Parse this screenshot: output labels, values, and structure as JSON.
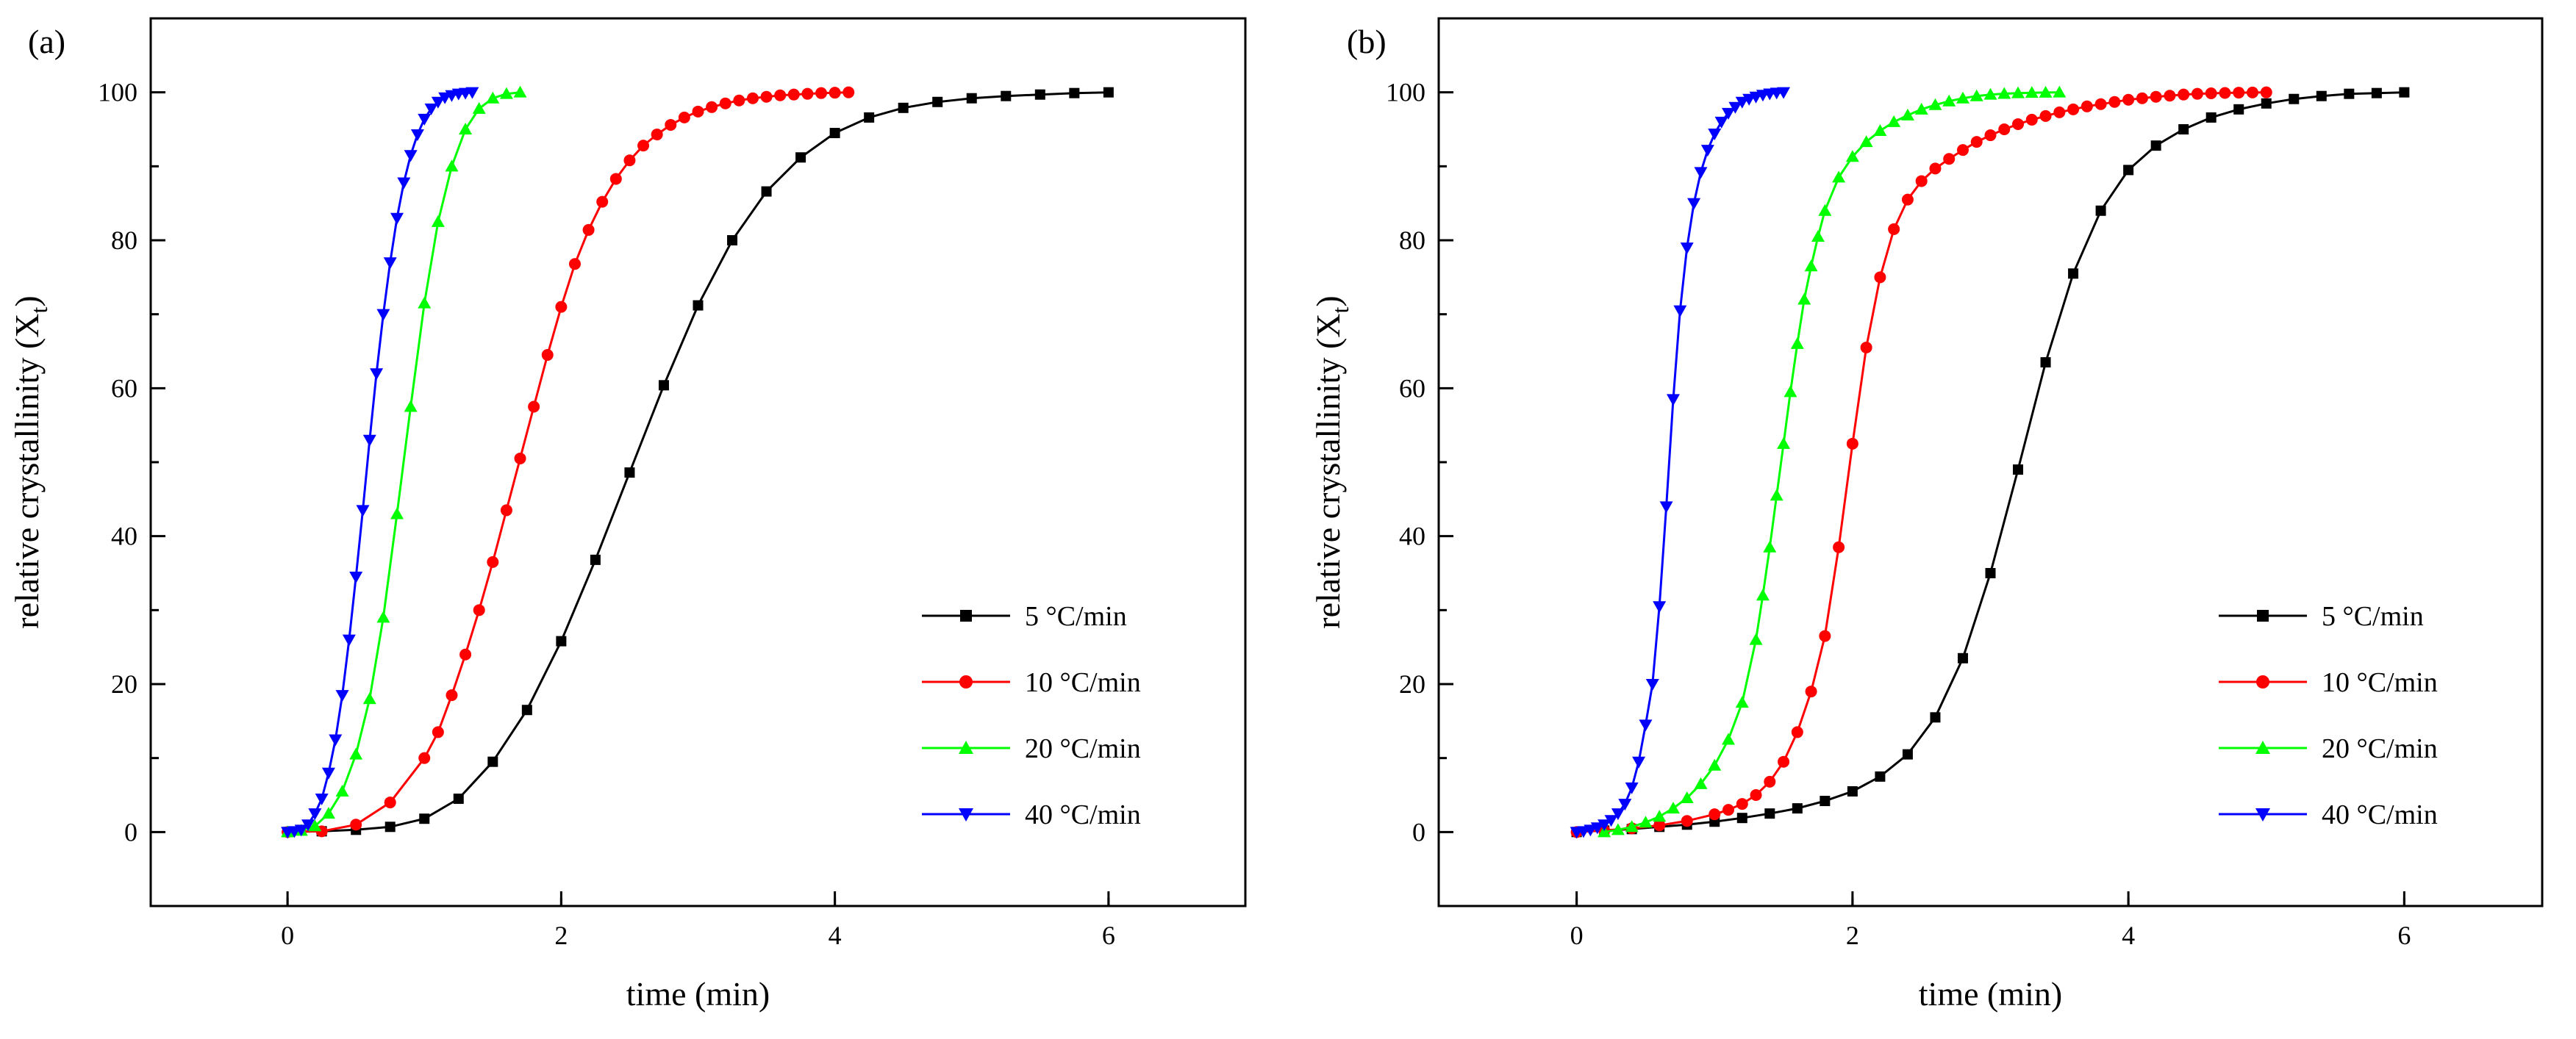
{
  "chart_data": [
    {
      "type": "line",
      "panel_label": "(a)",
      "xlabel": "time (min)",
      "ylabel": "relative crystallinity (X",
      "ylabel_subscript": "t",
      "ylabel_close": ")",
      "xlim": [
        -1,
        7
      ],
      "ylim": [
        -10,
        110
      ],
      "xticks": [
        0,
        2,
        4,
        6
      ],
      "yticks": [
        0,
        20,
        40,
        60,
        80,
        100
      ],
      "xtick_labels": [
        "0",
        "2",
        "4",
        "6"
      ],
      "ytick_labels": [
        "0",
        "20",
        "40",
        "60",
        "80",
        "100"
      ],
      "legend_position": "bottom-right",
      "grid": false,
      "series": [
        {
          "name": "5 °C/min",
          "color": "#000000",
          "marker": "square",
          "x": [
            0.0,
            0.25,
            0.5,
            0.75,
            1.0,
            1.25,
            1.5,
            1.75,
            2.0,
            2.25,
            2.5,
            2.75,
            3.0,
            3.25,
            3.5,
            3.75,
            4.0,
            4.25,
            4.5,
            4.75,
            5.0,
            5.25,
            5.5,
            5.75,
            6.0
          ],
          "y": [
            0,
            0.1,
            0.3,
            0.7,
            1.8,
            4.5,
            9.5,
            16.5,
            25.8,
            36.8,
            48.6,
            60.4,
            71.2,
            80.0,
            86.6,
            91.2,
            94.5,
            96.6,
            97.9,
            98.7,
            99.2,
            99.5,
            99.7,
            99.9,
            100
          ]
        },
        {
          "name": "10 °C/min",
          "color": "#ff0000",
          "marker": "circle",
          "x": [
            0.0,
            0.25,
            0.5,
            0.75,
            1.0,
            1.1,
            1.2,
            1.3,
            1.4,
            1.5,
            1.6,
            1.7,
            1.8,
            1.9,
            2.0,
            2.1,
            2.2,
            2.3,
            2.4,
            2.5,
            2.6,
            2.7,
            2.8,
            2.9,
            3.0,
            3.1,
            3.2,
            3.3,
            3.4,
            3.5,
            3.6,
            3.7,
            3.8,
            3.9,
            4.0,
            4.1
          ],
          "y": [
            0,
            0.1,
            1.0,
            4.0,
            10.0,
            13.5,
            18.5,
            24.0,
            30.0,
            36.5,
            43.5,
            50.5,
            57.5,
            64.5,
            71.0,
            76.8,
            81.4,
            85.2,
            88.3,
            90.8,
            92.8,
            94.3,
            95.6,
            96.6,
            97.4,
            98.0,
            98.5,
            98.9,
            99.2,
            99.4,
            99.6,
            99.7,
            99.8,
            99.9,
            99.95,
            100
          ]
        },
        {
          "name": "20 °C/min",
          "color": "#00ff00",
          "marker": "triangle-up",
          "x": [
            0.0,
            0.1,
            0.2,
            0.3,
            0.4,
            0.5,
            0.6,
            0.7,
            0.8,
            0.9,
            1.0,
            1.1,
            1.2,
            1.3,
            1.4,
            1.5,
            1.6,
            1.7
          ],
          "y": [
            0,
            0.2,
            0.8,
            2.5,
            5.5,
            10.5,
            18.0,
            29.0,
            43.0,
            57.5,
            71.5,
            82.5,
            90.0,
            95.0,
            97.8,
            99.2,
            99.8,
            100
          ]
        },
        {
          "name": "40 °C/min",
          "color": "#0000ff",
          "marker": "triangle-down",
          "x": [
            0.0,
            0.05,
            0.1,
            0.15,
            0.2,
            0.25,
            0.3,
            0.35,
            0.4,
            0.45,
            0.5,
            0.55,
            0.6,
            0.65,
            0.7,
            0.75,
            0.8,
            0.85,
            0.9,
            0.95,
            1.0,
            1.05,
            1.1,
            1.15,
            1.2,
            1.25,
            1.3,
            1.35
          ],
          "y": [
            0,
            0.1,
            0.3,
            1.0,
            2.5,
            4.5,
            8.0,
            12.5,
            18.5,
            26.0,
            34.5,
            43.5,
            53.0,
            62.0,
            70.0,
            77.0,
            83.0,
            87.8,
            91.5,
            94.3,
            96.4,
            97.8,
            98.7,
            99.3,
            99.6,
            99.8,
            99.9,
            100
          ]
        }
      ]
    },
    {
      "type": "line",
      "panel_label": "(b)",
      "xlabel": "time (min)",
      "ylabel": "relative crystallinity (X",
      "ylabel_subscript": "t",
      "ylabel_close": ")",
      "xlim": [
        -1,
        7
      ],
      "ylim": [
        -10,
        110
      ],
      "xticks": [
        0,
        2,
        4,
        6
      ],
      "yticks": [
        0,
        20,
        40,
        60,
        80,
        100
      ],
      "xtick_labels": [
        "0",
        "2",
        "4",
        "6"
      ],
      "ytick_labels": [
        "0",
        "20",
        "40",
        "60",
        "80",
        "100"
      ],
      "legend_position": "bottom-right",
      "grid": false,
      "series": [
        {
          "name": "5 °C/min",
          "color": "#000000",
          "marker": "square",
          "x": [
            0.0,
            0.2,
            0.4,
            0.6,
            0.8,
            1.0,
            1.2,
            1.4,
            1.6,
            1.8,
            2.0,
            2.2,
            2.4,
            2.6,
            2.8,
            3.0,
            3.2,
            3.4,
            3.6,
            3.8,
            4.0,
            4.2,
            4.4,
            4.6,
            4.8,
            5.0,
            5.2,
            5.4,
            5.6,
            5.8,
            6.0
          ],
          "y": [
            0,
            0.2,
            0.4,
            0.7,
            1.0,
            1.4,
            1.9,
            2.5,
            3.2,
            4.2,
            5.5,
            7.5,
            10.5,
            15.5,
            23.5,
            35.0,
            49.0,
            63.5,
            75.5,
            84.0,
            89.5,
            92.8,
            95.0,
            96.6,
            97.7,
            98.5,
            99.1,
            99.5,
            99.8,
            99.9,
            100
          ]
        },
        {
          "name": "10 °C/min",
          "color": "#ff0000",
          "marker": "circle",
          "x": [
            0.0,
            0.2,
            0.4,
            0.6,
            0.8,
            1.0,
            1.1,
            1.2,
            1.3,
            1.4,
            1.5,
            1.6,
            1.7,
            1.8,
            1.9,
            2.0,
            2.1,
            2.2,
            2.3,
            2.4,
            2.5,
            2.6,
            2.7,
            2.8,
            2.9,
            3.0,
            3.1,
            3.2,
            3.3,
            3.4,
            3.5,
            3.6,
            3.7,
            3.8,
            3.9,
            4.0,
            4.1,
            4.2,
            4.3,
            4.4,
            4.5,
            4.6,
            4.7,
            4.8,
            4.9,
            5.0
          ],
          "y": [
            0,
            0.2,
            0.5,
            0.9,
            1.5,
            2.4,
            3.0,
            3.8,
            5.0,
            6.8,
            9.5,
            13.5,
            19.0,
            26.5,
            38.5,
            52.5,
            65.5,
            75.0,
            81.5,
            85.5,
            88.0,
            89.7,
            91.0,
            92.2,
            93.3,
            94.2,
            95.0,
            95.7,
            96.3,
            96.8,
            97.3,
            97.7,
            98.1,
            98.4,
            98.7,
            99.0,
            99.2,
            99.4,
            99.55,
            99.7,
            99.8,
            99.87,
            99.92,
            99.96,
            99.98,
            100
          ]
        },
        {
          "name": "20 °C/min",
          "color": "#00ff00",
          "marker": "triangle-up",
          "x": [
            0.2,
            0.3,
            0.4,
            0.5,
            0.6,
            0.7,
            0.8,
            0.9,
            1.0,
            1.1,
            1.2,
            1.3,
            1.35,
            1.4,
            1.45,
            1.5,
            1.55,
            1.6,
            1.65,
            1.7,
            1.75,
            1.8,
            1.9,
            2.0,
            2.1,
            2.2,
            2.3,
            2.4,
            2.5,
            2.6,
            2.7,
            2.8,
            2.9,
            3.0,
            3.1,
            3.2,
            3.3,
            3.4,
            3.5
          ],
          "y": [
            0,
            0.3,
            0.7,
            1.3,
            2.1,
            3.2,
            4.6,
            6.5,
            9.0,
            12.5,
            17.5,
            26.0,
            32.0,
            38.5,
            45.5,
            52.5,
            59.5,
            66.0,
            72.0,
            76.5,
            80.5,
            84.0,
            88.5,
            91.3,
            93.3,
            94.8,
            96.0,
            96.9,
            97.7,
            98.3,
            98.8,
            99.2,
            99.5,
            99.7,
            99.82,
            99.9,
            99.95,
            99.98,
            100
          ]
        },
        {
          "name": "40 °C/min",
          "color": "#0000ff",
          "marker": "triangle-down",
          "x": [
            0.0,
            0.05,
            0.1,
            0.15,
            0.2,
            0.25,
            0.3,
            0.35,
            0.4,
            0.45,
            0.5,
            0.55,
            0.6,
            0.65,
            0.7,
            0.75,
            0.8,
            0.85,
            0.9,
            0.95,
            1.0,
            1.05,
            1.1,
            1.15,
            1.2,
            1.25,
            1.3,
            1.35,
            1.4,
            1.45,
            1.5
          ],
          "y": [
            0,
            0.1,
            0.3,
            0.6,
            1.0,
            1.6,
            2.5,
            3.8,
            6.0,
            9.5,
            14.5,
            20.0,
            30.5,
            44.0,
            58.5,
            70.5,
            79.0,
            85.0,
            89.2,
            92.2,
            94.4,
            96.0,
            97.2,
            98.0,
            98.7,
            99.1,
            99.4,
            99.65,
            99.82,
            99.93,
            100
          ]
        }
      ]
    }
  ]
}
